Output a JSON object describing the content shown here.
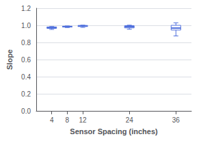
{
  "chart_data": {
    "type": "box",
    "xlabel": "Sensor Spacing (inches)",
    "ylabel": "Slope",
    "x": [
      4,
      8,
      12,
      24,
      36
    ],
    "values": [
      {
        "whislo": 0.952,
        "q1": 0.964,
        "med": 0.974,
        "q3": 0.981,
        "whishi": 0.986
      },
      {
        "whislo": 0.974,
        "q1": 0.98,
        "med": 0.985,
        "q3": 0.989,
        "whishi": 0.993
      },
      {
        "whislo": 0.976,
        "q1": 0.986,
        "med": 0.993,
        "q3": 0.998,
        "whishi": 1.002
      },
      {
        "whislo": 0.954,
        "q1": 0.97,
        "med": 0.984,
        "q3": 0.996,
        "whishi": 1.002
      },
      {
        "whislo": 0.876,
        "q1": 0.945,
        "med": 0.968,
        "q3": 1.0,
        "whishi": 1.03
      }
    ],
    "xlim": [
      0,
      40
    ],
    "xticks": [
      4,
      8,
      12,
      24,
      36
    ],
    "ylim": [
      0.0,
      1.2
    ],
    "yticks": [
      {
        "value": 0.0,
        "label": "0.0"
      },
      {
        "value": 0.2,
        "label": "0.2"
      },
      {
        "value": 0.4,
        "label": "0.4"
      },
      {
        "value": 0.6,
        "label": "0.6"
      },
      {
        "value": 0.8,
        "label": "0.8"
      },
      {
        "value": 1.0,
        "label": "1.0"
      },
      {
        "value": 1.2,
        "label": "1.2"
      }
    ],
    "grid": true
  }
}
